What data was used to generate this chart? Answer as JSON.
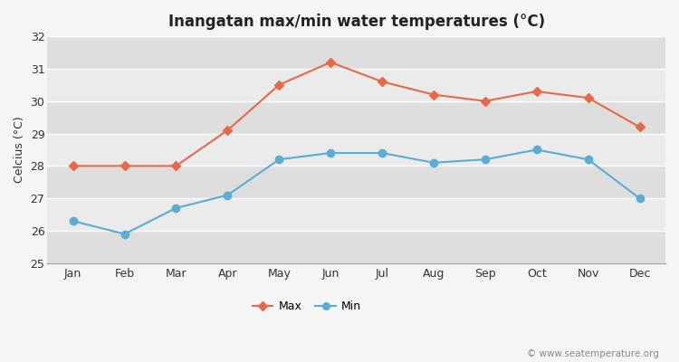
{
  "title": "Inangatan max/min water temperatures (°C)",
  "ylabel": "Celcius (°C)",
  "months": [
    "Jan",
    "Feb",
    "Mar",
    "Apr",
    "May",
    "Jun",
    "Jul",
    "Aug",
    "Sep",
    "Oct",
    "Nov",
    "Dec"
  ],
  "max_temps": [
    28.0,
    28.0,
    28.0,
    29.1,
    30.5,
    31.2,
    30.6,
    30.2,
    30.0,
    30.3,
    30.1,
    29.2
  ],
  "min_temps": [
    26.3,
    25.9,
    26.7,
    27.1,
    28.2,
    28.4,
    28.4,
    28.1,
    28.2,
    28.5,
    28.2,
    27.0
  ],
  "max_color": "#e8694a",
  "min_color": "#5badd4",
  "ylim": [
    25,
    32
  ],
  "yticks": [
    25,
    26,
    27,
    28,
    29,
    30,
    31,
    32
  ],
  "fig_bg_color": "#f5f5f5",
  "plot_bg_color": "#e8e8e8",
  "band_light": "#ebebeb",
  "band_dark": "#dedede",
  "grid_color": "#ffffff",
  "watermark": "© www.seatemperature.org",
  "legend_labels": [
    "Max",
    "Min"
  ],
  "title_fontsize": 12,
  "label_fontsize": 9,
  "tick_fontsize": 9,
  "watermark_fontsize": 7.5
}
